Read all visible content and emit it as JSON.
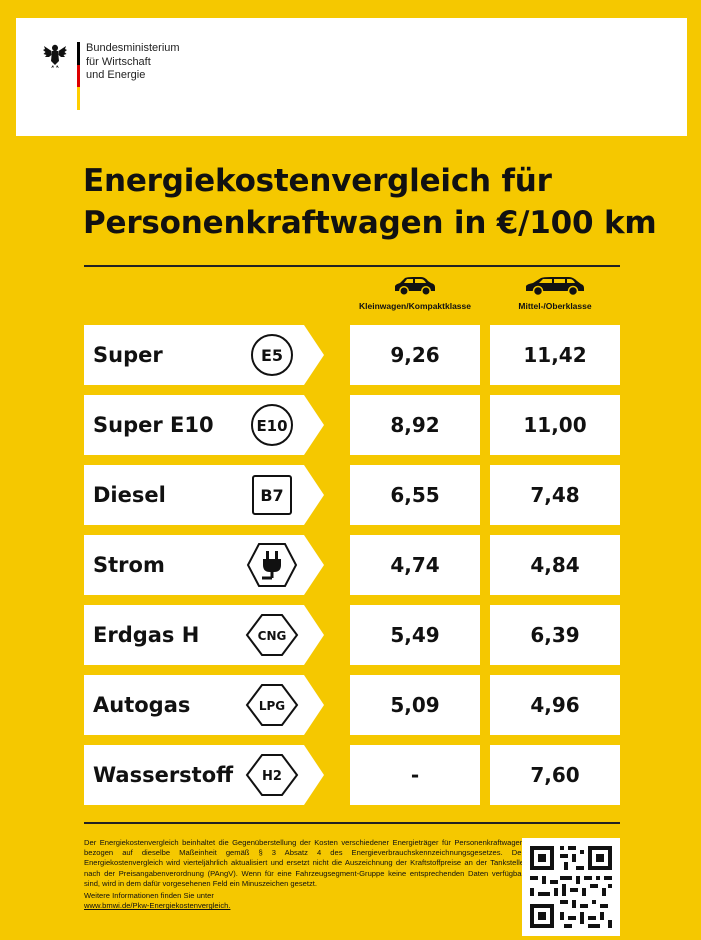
{
  "header": {
    "ministry_lines": [
      "Bundesministerium",
      "für Wirtschaft",
      "und Energie"
    ]
  },
  "title": {
    "line1": "Energiekostenvergleich für",
    "line2": "Personenkraftwagen in €/100 km"
  },
  "columns": [
    {
      "label": "Kleinwagen/Kompaktklasse",
      "icon": "small-car-icon"
    },
    {
      "label": "Mittel-/Oberklasse",
      "icon": "large-car-icon"
    }
  ],
  "rows": [
    {
      "fuel": "Super",
      "symbol": "E5",
      "symbol_shape": "circle",
      "small": "9,26",
      "large": "11,42"
    },
    {
      "fuel": "Super E10",
      "symbol": "E10",
      "symbol_shape": "circle",
      "small": "8,92",
      "large": "11,00"
    },
    {
      "fuel": "Diesel",
      "symbol": "B7",
      "symbol_shape": "square",
      "small": "6,55",
      "large": "7,48"
    },
    {
      "fuel": "Strom",
      "symbol": "",
      "symbol_shape": "hexagon-plug",
      "small": "4,74",
      "large": "4,84"
    },
    {
      "fuel": "Erdgas H",
      "symbol": "CNG",
      "symbol_shape": "diamond",
      "small": "5,49",
      "large": "6,39"
    },
    {
      "fuel": "Autogas",
      "symbol": "LPG",
      "symbol_shape": "diamond",
      "small": "5,09",
      "large": "4,96"
    },
    {
      "fuel": "Wasserstoff",
      "symbol": "H2",
      "symbol_shape": "diamond",
      "small": "-",
      "large": "7,60"
    }
  ],
  "footer": {
    "text": "Der Energiekostenvergleich beinhaltet die Gegenüberstellung der Kosten verschiedener Energieträger für Personenkraftwagen bezogen auf dieselbe Maßeinheit gemäß § 3 Absatz 4 des Energieverbrauchskennzeichnungsgesetzes. Der Energiekostenvergleich wird vierteljährlich aktualisiert und ersetzt nicht die Auszeichnung der Kraftstoffpreise an der Tankstelle nach der Preisangabenverordnung (PAngV). Wenn für eine Fahrzeugsegment-Gruppe keine entsprechenden Daten verfügbar sind, wird in dem dafür vorgesehenen Feld ein Minuszeichen gesetzt.",
    "more_label": "Weitere Informationen finden Sie unter",
    "link": "www.bmwi.de/Pkw-Energiekostenvergleich."
  },
  "colors": {
    "background": "#F5C800",
    "flag_black": "#000000",
    "flag_red": "#DD0000",
    "flag_gold": "#FFCE00"
  }
}
